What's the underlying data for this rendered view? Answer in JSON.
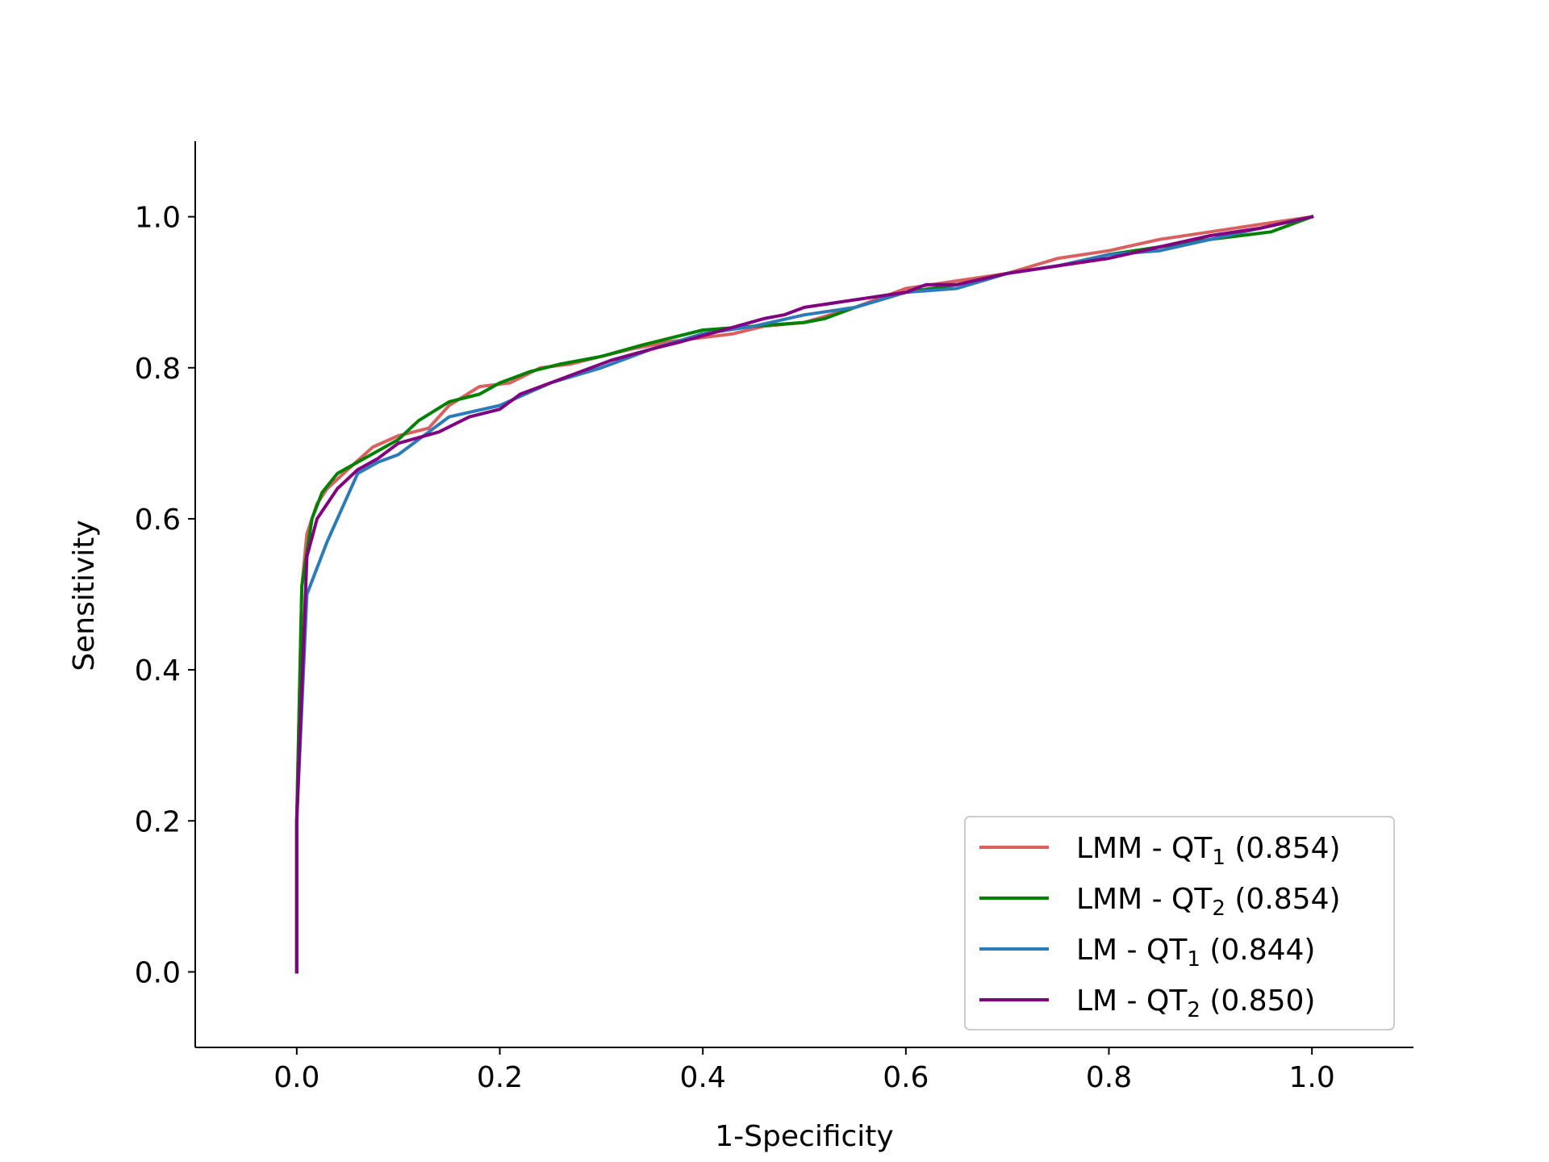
{
  "chart_data": {
    "type": "line",
    "title": "",
    "xlabel": "1-Specificity",
    "ylabel": "Sensitivity",
    "xlim": [
      -0.1,
      1.1
    ],
    "ylim": [
      -0.1,
      1.1
    ],
    "xticks": [
      "0.0",
      "0.2",
      "0.4",
      "0.6",
      "0.8",
      "1.0"
    ],
    "yticks": [
      "0.0",
      "0.2",
      "0.4",
      "0.6",
      "0.8",
      "1.0"
    ],
    "grid": false,
    "legend_position": "lower-right",
    "series": [
      {
        "name": "LMM - QT",
        "subscript": "1",
        "suffix": " (0.854)",
        "color": "#d9605f",
        "points": [
          [
            0,
            0
          ],
          [
            0,
            0.2
          ],
          [
            0.005,
            0.51
          ],
          [
            0.01,
            0.58
          ],
          [
            0.02,
            0.62
          ],
          [
            0.03,
            0.64
          ],
          [
            0.05,
            0.665
          ],
          [
            0.075,
            0.695
          ],
          [
            0.1,
            0.71
          ],
          [
            0.13,
            0.72
          ],
          [
            0.15,
            0.75
          ],
          [
            0.18,
            0.775
          ],
          [
            0.21,
            0.78
          ],
          [
            0.24,
            0.8
          ],
          [
            0.27,
            0.805
          ],
          [
            0.3,
            0.815
          ],
          [
            0.33,
            0.825
          ],
          [
            0.37,
            0.835
          ],
          [
            0.4,
            0.84
          ],
          [
            0.43,
            0.845
          ],
          [
            0.46,
            0.855
          ],
          [
            0.5,
            0.86
          ],
          [
            0.55,
            0.88
          ],
          [
            0.6,
            0.905
          ],
          [
            0.65,
            0.915
          ],
          [
            0.7,
            0.925
          ],
          [
            0.75,
            0.945
          ],
          [
            0.8,
            0.955
          ],
          [
            0.85,
            0.97
          ],
          [
            0.9,
            0.98
          ],
          [
            0.95,
            0.99
          ],
          [
            1,
            1
          ]
        ]
      },
      {
        "name": "LMM - QT",
        "subscript": "2",
        "suffix": " (0.854)",
        "color": "#008000",
        "points": [
          [
            0,
            0
          ],
          [
            0,
            0.2
          ],
          [
            0.005,
            0.51
          ],
          [
            0.015,
            0.6
          ],
          [
            0.025,
            0.635
          ],
          [
            0.04,
            0.66
          ],
          [
            0.06,
            0.675
          ],
          [
            0.08,
            0.69
          ],
          [
            0.1,
            0.705
          ],
          [
            0.12,
            0.73
          ],
          [
            0.15,
            0.755
          ],
          [
            0.18,
            0.765
          ],
          [
            0.2,
            0.78
          ],
          [
            0.23,
            0.795
          ],
          [
            0.26,
            0.805
          ],
          [
            0.3,
            0.815
          ],
          [
            0.34,
            0.83
          ],
          [
            0.37,
            0.84
          ],
          [
            0.4,
            0.85
          ],
          [
            0.45,
            0.855
          ],
          [
            0.5,
            0.86
          ],
          [
            0.52,
            0.865
          ],
          [
            0.55,
            0.88
          ],
          [
            0.6,
            0.9
          ],
          [
            0.65,
            0.91
          ],
          [
            0.7,
            0.925
          ],
          [
            0.75,
            0.935
          ],
          [
            0.8,
            0.95
          ],
          [
            0.85,
            0.96
          ],
          [
            0.9,
            0.97
          ],
          [
            0.96,
            0.98
          ],
          [
            1,
            1
          ]
        ]
      },
      {
        "name": "LM - QT",
        "subscript": "1",
        "suffix": " (0.844)",
        "color": "#2d7ab8",
        "points": [
          [
            0,
            0
          ],
          [
            0,
            0.2
          ],
          [
            0.01,
            0.5
          ],
          [
            0.03,
            0.57
          ],
          [
            0.06,
            0.66
          ],
          [
            0.08,
            0.675
          ],
          [
            0.1,
            0.685
          ],
          [
            0.12,
            0.705
          ],
          [
            0.15,
            0.735
          ],
          [
            0.2,
            0.75
          ],
          [
            0.25,
            0.78
          ],
          [
            0.3,
            0.8
          ],
          [
            0.35,
            0.825
          ],
          [
            0.4,
            0.845
          ],
          [
            0.45,
            0.855
          ],
          [
            0.5,
            0.87
          ],
          [
            0.55,
            0.88
          ],
          [
            0.6,
            0.9
          ],
          [
            0.65,
            0.905
          ],
          [
            0.7,
            0.925
          ],
          [
            0.75,
            0.935
          ],
          [
            0.8,
            0.95
          ],
          [
            0.85,
            0.955
          ],
          [
            0.9,
            0.97
          ],
          [
            0.95,
            0.985
          ],
          [
            1,
            1
          ]
        ]
      },
      {
        "name": "LM - QT",
        "subscript": "2",
        "suffix": " (0.850)",
        "color": "#800080",
        "points": [
          [
            0,
            0
          ],
          [
            0,
            0.2
          ],
          [
            0.01,
            0.55
          ],
          [
            0.02,
            0.6
          ],
          [
            0.04,
            0.64
          ],
          [
            0.06,
            0.665
          ],
          [
            0.08,
            0.68
          ],
          [
            0.1,
            0.7
          ],
          [
            0.14,
            0.715
          ],
          [
            0.17,
            0.735
          ],
          [
            0.2,
            0.745
          ],
          [
            0.22,
            0.765
          ],
          [
            0.25,
            0.78
          ],
          [
            0.28,
            0.795
          ],
          [
            0.31,
            0.81
          ],
          [
            0.35,
            0.825
          ],
          [
            0.38,
            0.835
          ],
          [
            0.42,
            0.85
          ],
          [
            0.46,
            0.865
          ],
          [
            0.48,
            0.87
          ],
          [
            0.5,
            0.88
          ],
          [
            0.55,
            0.89
          ],
          [
            0.6,
            0.9
          ],
          [
            0.62,
            0.91
          ],
          [
            0.65,
            0.91
          ],
          [
            0.7,
            0.925
          ],
          [
            0.75,
            0.935
          ],
          [
            0.8,
            0.945
          ],
          [
            0.85,
            0.96
          ],
          [
            0.9,
            0.975
          ],
          [
            0.95,
            0.985
          ],
          [
            1,
            1
          ]
        ]
      }
    ]
  }
}
